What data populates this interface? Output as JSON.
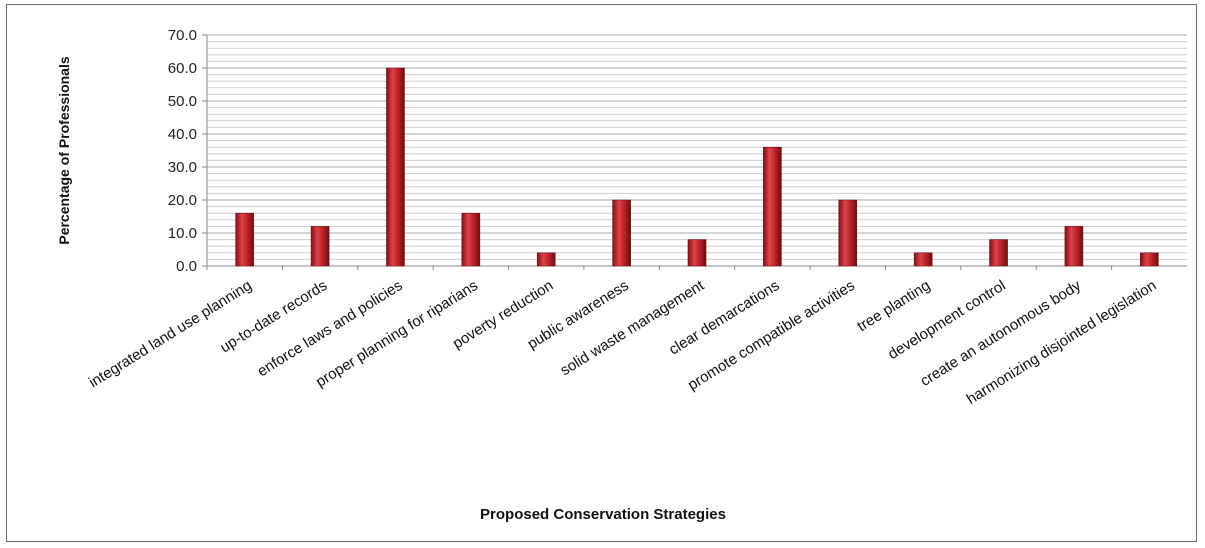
{
  "chart_data": {
    "type": "bar",
    "xlabel": "Proposed Conservation Strategies",
    "ylabel": "Percentage of Professionals",
    "ylim": [
      0,
      70
    ],
    "yticks": [
      "0.0",
      "10.0",
      "20.0",
      "30.0",
      "40.0",
      "50.0",
      "60.0",
      "70.0"
    ],
    "grid": true,
    "legend": "none",
    "bar_color": "#c0272d",
    "categories": [
      "integrated land use planning",
      "up-to-date records",
      "enforce laws and policies",
      "proper planning for riparians",
      "poverty reduction",
      "public awareness",
      "solid waste management",
      "clear demarcations",
      "promote compatible activities",
      "tree planting",
      "development control",
      "create  an autonomous body",
      "harmonizing disjointed legislation"
    ],
    "values": [
      16,
      12,
      60,
      16,
      4,
      20,
      8,
      36,
      20,
      4,
      8,
      12,
      4
    ]
  }
}
